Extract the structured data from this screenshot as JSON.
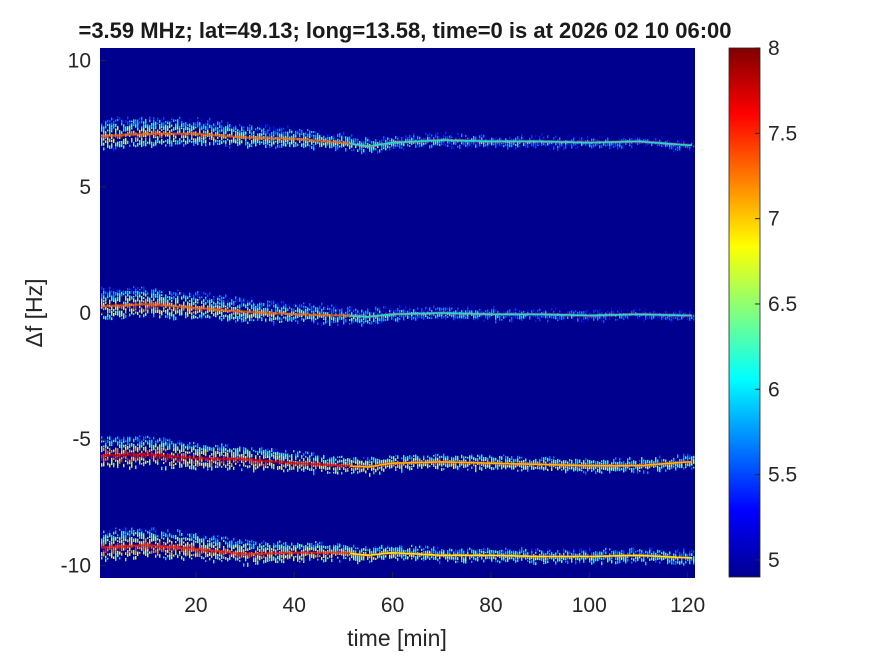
{
  "chart_data": {
    "type": "heatmap",
    "title": "=3.59 MHz;  lat=49.13; long=13.58, time=0 is at 2026 02 10 06:00",
    "xlabel": "time [min]",
    "ylabel": "Δf [Hz]",
    "xlim": [
      0.5,
      121.5
    ],
    "ylim": [
      -10.5,
      10.5
    ],
    "x_ticks": [
      "20",
      "40",
      "60",
      "80",
      "100",
      "120"
    ],
    "x_tick_values": [
      20,
      40,
      60,
      80,
      100,
      120
    ],
    "y_ticks": [
      "10",
      "5",
      "0",
      "-5",
      "-10"
    ],
    "y_tick_values": [
      10,
      5,
      0,
      -5,
      -10
    ],
    "colorbar": {
      "range": [
        4.9,
        8
      ],
      "ticks": [
        "8",
        "7.5",
        "7",
        "6.5",
        "6",
        "5.5",
        "5"
      ],
      "tick_values": [
        8,
        7.5,
        7,
        6.5,
        6,
        5.5,
        5
      ],
      "colormap": "jet"
    },
    "background_color": "#00008f",
    "traces": [
      {
        "time": [
          0,
          10,
          20,
          30,
          40,
          50,
          55,
          60,
          70,
          80,
          90,
          100,
          110,
          120
        ],
        "df": [
          7.0,
          7.1,
          7.1,
          6.95,
          6.9,
          6.75,
          6.6,
          6.75,
          6.85,
          6.8,
          6.8,
          6.75,
          6.8,
          6.65
        ],
        "peak": [
          7.6,
          7.6,
          7.4,
          7.2,
          7.0,
          6.9,
          6.8,
          6.6,
          6.5,
          6.4,
          6.3,
          6.2,
          6.1,
          6.0
        ]
      },
      {
        "time": [
          0,
          10,
          20,
          30,
          40,
          50,
          55,
          60,
          70,
          80,
          90,
          100,
          110,
          120
        ],
        "df": [
          0.25,
          0.35,
          0.2,
          0.05,
          -0.05,
          -0.1,
          -0.15,
          -0.05,
          0.0,
          -0.05,
          -0.05,
          -0.1,
          -0.05,
          -0.1
        ],
        "peak": [
          7.6,
          7.7,
          7.5,
          7.3,
          7.0,
          6.8,
          6.7,
          6.6,
          6.4,
          6.3,
          6.2,
          6.1,
          6.0,
          6.0
        ]
      },
      {
        "time": [
          0,
          10,
          20,
          30,
          40,
          50,
          55,
          60,
          70,
          80,
          90,
          100,
          110,
          120
        ],
        "df": [
          -5.65,
          -5.6,
          -5.75,
          -5.8,
          -5.95,
          -6.05,
          -6.1,
          -5.95,
          -5.9,
          -5.95,
          -6.0,
          -6.05,
          -6.05,
          -5.9
        ],
        "peak": [
          8.0,
          8.0,
          7.8,
          7.7,
          7.5,
          7.4,
          7.4,
          7.3,
          7.3,
          7.2,
          7.2,
          7.1,
          7.0,
          7.0
        ]
      },
      {
        "time": [
          0,
          10,
          20,
          30,
          40,
          50,
          55,
          60,
          70,
          80,
          90,
          100,
          110,
          120
        ],
        "df": [
          -9.3,
          -9.2,
          -9.35,
          -9.55,
          -9.5,
          -9.5,
          -9.6,
          -9.5,
          -9.6,
          -9.6,
          -9.65,
          -9.65,
          -9.6,
          -9.7
        ],
        "peak": [
          7.8,
          7.9,
          7.8,
          7.6,
          7.5,
          7.3,
          7.2,
          7.1,
          7.0,
          6.9,
          6.9,
          6.8,
          6.8,
          6.8
        ]
      }
    ]
  }
}
